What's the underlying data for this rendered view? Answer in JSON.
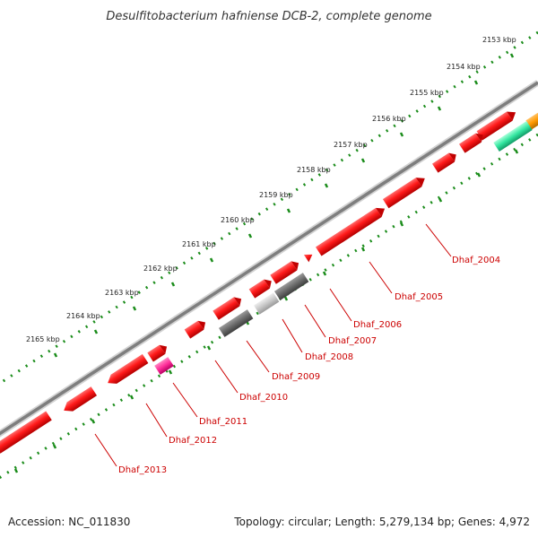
{
  "title": "Desulfitobacterium hafniense DCB-2, complete genome",
  "accession": "Accession: NC_011830",
  "summary": "Topology: circular; Length: 5,279,134 bp; Genes: 4,972",
  "ticks": [
    {
      "label": "2153 kbp"
    },
    {
      "label": "2154 kbp"
    },
    {
      "label": "2155 kbp"
    },
    {
      "label": "2156 kbp"
    },
    {
      "label": "2157 kbp"
    },
    {
      "label": "2158 kbp"
    },
    {
      "label": "2159 kbp"
    },
    {
      "label": "2160 kbp"
    },
    {
      "label": "2161 kbp"
    },
    {
      "label": "2162 kbp"
    },
    {
      "label": "2163 kbp"
    },
    {
      "label": "2164 kbp"
    },
    {
      "label": "2165 kbp"
    }
  ],
  "genes": [
    {
      "label": "Dhaf_2004"
    },
    {
      "label": "Dhaf_2005"
    },
    {
      "label": "Dhaf_2006"
    },
    {
      "label": "Dhaf_2007"
    },
    {
      "label": "Dhaf_2008"
    },
    {
      "label": "Dhaf_2009"
    },
    {
      "label": "Dhaf_2010"
    },
    {
      "label": "Dhaf_2011"
    },
    {
      "label": "Dhaf_2012"
    },
    {
      "label": "Dhaf_2013"
    }
  ],
  "colors": {
    "gene_red": "#ff1a1a",
    "gene_gray": "#707070",
    "gene_light": "#cfcfcf",
    "gene_magenta": "#ff2e9a",
    "gene_green": "#33e6a0",
    "gene_orange": "#ff9900",
    "backbone": "#8a8a8a",
    "tick_green": "#1a8c1a",
    "label_red": "#cc0000"
  }
}
